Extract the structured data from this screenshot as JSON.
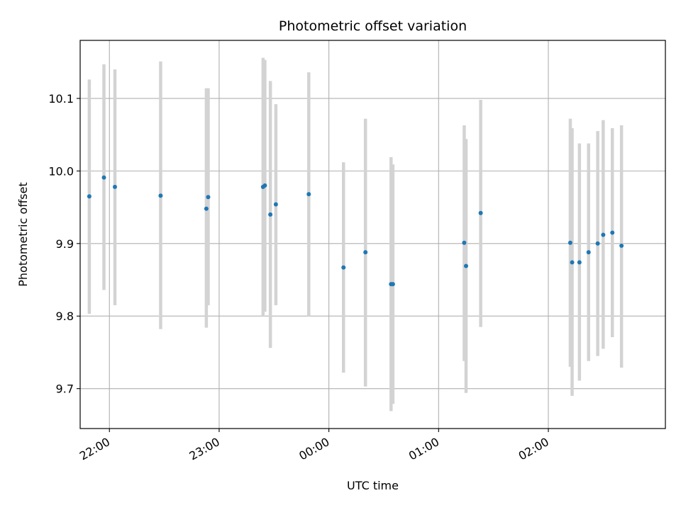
{
  "chart_data": {
    "type": "scatter",
    "title": "Photometric offset variation",
    "xlabel": "UTC time",
    "ylabel": "Photometric offset",
    "x_axis_type": "time",
    "x_ticks": [
      "22:00",
      "23:00",
      "00:00",
      "01:00",
      "02:00"
    ],
    "y_ticks": [
      "9.7",
      "9.8",
      "9.9",
      "10.0",
      "10.1"
    ],
    "xlim": [
      "21:44",
      "03:04"
    ],
    "ylim": [
      9.645,
      10.18
    ],
    "grid": true,
    "legend": "none",
    "colors": {
      "point": "#1f77b4",
      "error_bar": "#d3d3d3",
      "grid": "#b0b0b0",
      "axis": "#000000"
    },
    "points": [
      {
        "time": "21:49",
        "y": 9.965,
        "ylo": 9.803,
        "yhi": 10.126
      },
      {
        "time": "21:57",
        "y": 9.991,
        "ylo": 9.836,
        "yhi": 10.147
      },
      {
        "time": "22:03",
        "y": 9.978,
        "ylo": 9.815,
        "yhi": 10.14
      },
      {
        "time": "22:28",
        "y": 9.966,
        "ylo": 9.782,
        "yhi": 10.151
      },
      {
        "time": "22:53",
        "y": 9.948,
        "ylo": 9.784,
        "yhi": 10.114
      },
      {
        "time": "22:54",
        "y": 9.964,
        "ylo": 9.815,
        "yhi": 10.114
      },
      {
        "time": "23:24",
        "y": 9.978,
        "ylo": 9.8,
        "yhi": 10.156
      },
      {
        "time": "23:25",
        "y": 9.98,
        "ylo": 9.806,
        "yhi": 10.153
      },
      {
        "time": "23:28",
        "y": 9.94,
        "ylo": 9.756,
        "yhi": 10.124
      },
      {
        "time": "23:31",
        "y": 9.954,
        "ylo": 9.815,
        "yhi": 10.092
      },
      {
        "time": "23:49",
        "y": 9.968,
        "ylo": 9.8,
        "yhi": 10.136
      },
      {
        "time": "00:08",
        "y": 9.867,
        "ylo": 9.722,
        "yhi": 10.012
      },
      {
        "time": "00:20",
        "y": 9.888,
        "ylo": 9.703,
        "yhi": 10.072
      },
      {
        "time": "00:34",
        "y": 9.844,
        "ylo": 9.669,
        "yhi": 10.019
      },
      {
        "time": "00:35",
        "y": 9.844,
        "ylo": 9.679,
        "yhi": 10.009
      },
      {
        "time": "01:14",
        "y": 9.901,
        "ylo": 9.738,
        "yhi": 10.063
      },
      {
        "time": "01:15",
        "y": 9.869,
        "ylo": 9.694,
        "yhi": 10.044
      },
      {
        "time": "01:23",
        "y": 9.942,
        "ylo": 9.785,
        "yhi": 10.098
      },
      {
        "time": "02:12",
        "y": 9.901,
        "ylo": 9.73,
        "yhi": 10.072
      },
      {
        "time": "02:13",
        "y": 9.874,
        "ylo": 9.69,
        "yhi": 10.059
      },
      {
        "time": "02:17",
        "y": 9.874,
        "ylo": 9.711,
        "yhi": 10.038
      },
      {
        "time": "02:22",
        "y": 9.888,
        "ylo": 9.738,
        "yhi": 10.038
      },
      {
        "time": "02:27",
        "y": 9.9,
        "ylo": 9.745,
        "yhi": 10.055
      },
      {
        "time": "02:30",
        "y": 9.912,
        "ylo": 9.755,
        "yhi": 10.07
      },
      {
        "time": "02:35",
        "y": 9.915,
        "ylo": 9.771,
        "yhi": 10.059
      },
      {
        "time": "02:40",
        "y": 9.897,
        "ylo": 9.729,
        "yhi": 10.063
      }
    ]
  }
}
